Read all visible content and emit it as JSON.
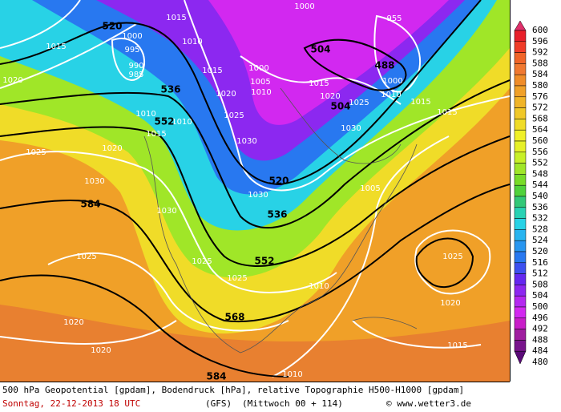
{
  "colorbar": {
    "labels": [
      600,
      596,
      592,
      588,
      584,
      580,
      576,
      572,
      568,
      564,
      560,
      556,
      552,
      548,
      544,
      540,
      536,
      532,
      528,
      524,
      520,
      516,
      512,
      508,
      504,
      500,
      496,
      492,
      488,
      484,
      480
    ],
    "colors": [
      "#e0306b",
      "#e8202a",
      "#f03c28",
      "#f06428",
      "#f07830",
      "#f08c28",
      "#f0a028",
      "#f0b428",
      "#f0c828",
      "#f0dc28",
      "#f0f028",
      "#e6f028",
      "#c8f028",
      "#a0e628",
      "#78dc28",
      "#50d23c",
      "#32c878",
      "#28d2b4",
      "#28d2e6",
      "#28b4f0",
      "#2896f0",
      "#2878f0",
      "#3c50f0",
      "#6428f0",
      "#8c28f0",
      "#b428f0",
      "#d228f0",
      "#c81ec8",
      "#a01ea0",
      "#78148c",
      "#5a0a78"
    ]
  },
  "contour_labels": {
    "geopotential": [
      "520",
      "536",
      "552",
      "584",
      "504",
      "504",
      "488",
      "520",
      "536",
      "552",
      "568",
      "584"
    ],
    "pressure": [
      "1020",
      "1025",
      "1030",
      "1025",
      "1020",
      "1020",
      "1015",
      "1000",
      "995",
      "990",
      "985",
      "1015",
      "1010",
      "1015",
      "1020",
      "1025",
      "1030",
      "1030",
      "1030",
      "1025",
      "1025",
      "1020",
      "1000",
      "1005",
      "1010",
      "1015",
      "1020",
      "1025",
      "1030",
      "1015",
      "1015",
      "1025",
      "1020",
      "1015",
      "1010",
      "1010",
      "1005",
      "955",
      "1000",
      "1010",
      "1000",
      "1010",
      "1015",
      "1010"
    ]
  },
  "footer": {
    "description": "500 hPa Geopotential [gpdam], Bodendruck [hPa], relative Topographie H500-H1000 [gpdam]",
    "date": "Sonntag, 22-12-2013  18 UTC",
    "model": "(GFS)",
    "run": "(Mittwoch 00 + 114)",
    "credit": "© www.wetter3.de"
  }
}
